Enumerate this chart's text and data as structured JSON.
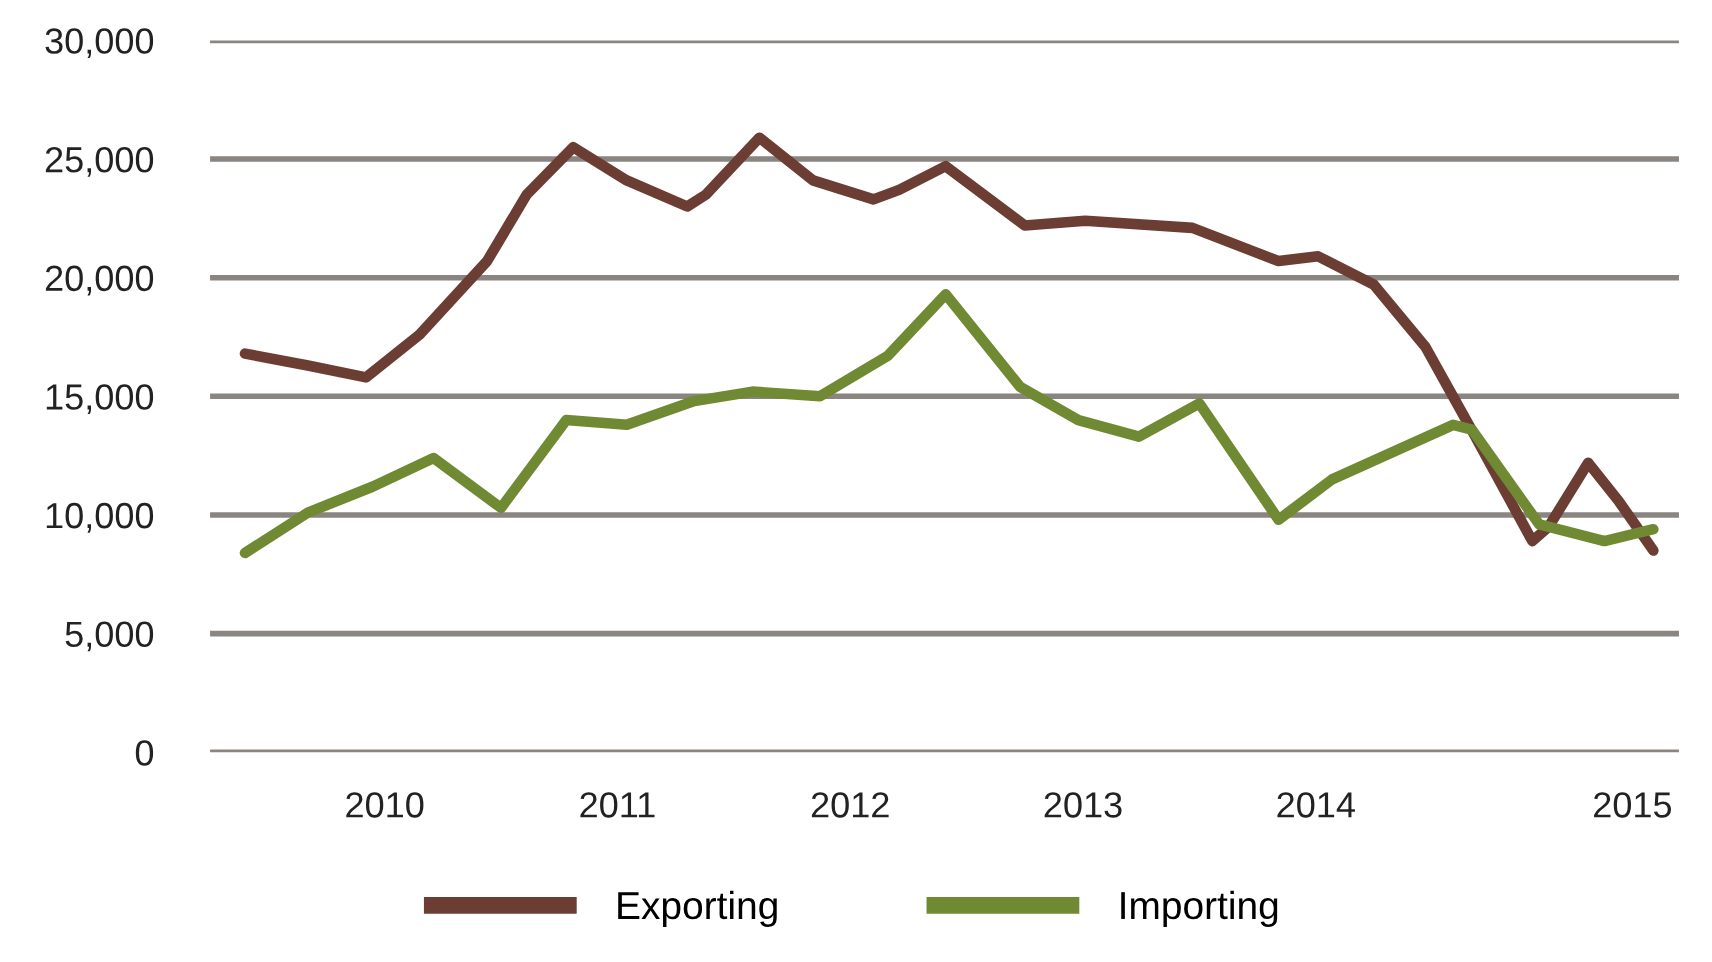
{
  "chart_data": {
    "type": "line",
    "series": [
      {
        "name": "Exporting",
        "color": "#6b3d33",
        "x": [
          2009.4,
          2009.67,
          2009.92,
          2010.15,
          2010.44,
          2010.61,
          2010.81,
          2011.04,
          2011.3,
          2011.38,
          2011.61,
          2011.84,
          2012.1,
          2012.21,
          2012.41,
          2012.75,
          2013.01,
          2013.47,
          2013.84,
          2014.01,
          2014.25,
          2014.47,
          2014.68,
          2014.93,
          2015.0,
          2015.17,
          2015.3,
          2015.45
        ],
        "values": [
          16800,
          16300,
          15800,
          17600,
          20700,
          23500,
          25500,
          24100,
          23000,
          23500,
          25900,
          24100,
          23300,
          23700,
          24700,
          22200,
          22400,
          22100,
          20700,
          20900,
          19700,
          17100,
          13400,
          8900,
          9500,
          12200,
          10600,
          8500
        ]
      },
      {
        "name": "Importing",
        "color": "#6f8a32",
        "x": [
          2009.4,
          2009.67,
          2009.95,
          2010.21,
          2010.5,
          2010.78,
          2011.04,
          2011.33,
          2011.58,
          2011.87,
          2012.16,
          2012.41,
          2012.73,
          2012.98,
          2013.24,
          2013.5,
          2013.84,
          2014.07,
          2014.59,
          2014.67,
          2014.96,
          2015.24,
          2015.45
        ],
        "values": [
          8400,
          10100,
          11200,
          12400,
          10300,
          14000,
          13800,
          14800,
          15200,
          15000,
          16700,
          19300,
          15400,
          14000,
          13300,
          14700,
          9800,
          11500,
          13800,
          13600,
          9600,
          8900,
          9400
        ]
      }
    ],
    "xlim": [
      2009.25,
      2015.56
    ],
    "xticks": [
      2010,
      2011,
      2012,
      2013,
      2014,
      {
        "value": 2015.36,
        "label": "2015"
      }
    ],
    "ylim": [
      0,
      30000
    ],
    "yticks": [
      0,
      {
        "value": 5000,
        "label": "5,000"
      },
      {
        "value": 10000,
        "label": "10,000"
      },
      {
        "value": 15000,
        "label": "15,000"
      },
      {
        "value": 20000,
        "label": "20,000"
      },
      {
        "value": 25000,
        "label": "25,000"
      },
      {
        "value": 30000,
        "label": "30,000"
      }
    ],
    "grid": "y",
    "legend": "bottom",
    "line_style": "solid"
  }
}
